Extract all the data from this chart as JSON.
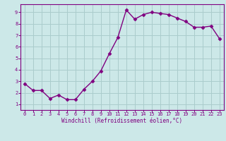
{
  "x": [
    0,
    1,
    2,
    3,
    4,
    5,
    6,
    7,
    8,
    9,
    10,
    11,
    12,
    13,
    14,
    15,
    16,
    17,
    18,
    19,
    20,
    21,
    22,
    23
  ],
  "y": [
    2.8,
    2.2,
    2.2,
    1.5,
    1.8,
    1.4,
    1.4,
    2.3,
    3.0,
    3.9,
    5.4,
    6.8,
    9.2,
    8.4,
    8.8,
    9.0,
    8.9,
    8.8,
    8.5,
    8.2,
    7.7,
    7.7,
    7.8,
    6.7
  ],
  "color": "#800080",
  "bg_color": "#cce8e8",
  "grid_color": "#aacccc",
  "xlabel": "Windchill (Refroidissement éolien,°C)",
  "xlim": [
    -0.5,
    23.5
  ],
  "ylim": [
    0.5,
    9.7
  ],
  "xticks": [
    0,
    1,
    2,
    3,
    4,
    5,
    6,
    7,
    8,
    9,
    10,
    11,
    12,
    13,
    14,
    15,
    16,
    17,
    18,
    19,
    20,
    21,
    22,
    23
  ],
  "yticks": [
    1,
    2,
    3,
    4,
    5,
    6,
    7,
    8,
    9
  ],
  "tick_color": "#800080",
  "label_color": "#800080",
  "spine_color": "#800080",
  "marker": "D",
  "markersize": 2.5,
  "linewidth": 1.0,
  "tick_fontsize": 5.0,
  "xlabel_fontsize": 5.5
}
